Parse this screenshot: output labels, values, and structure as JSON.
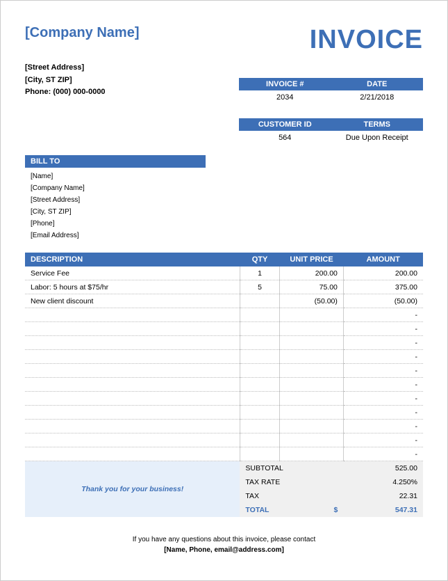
{
  "colors": {
    "primary": "#3d6fb6",
    "light_blue": "#e6effa",
    "grey_bg": "#f0f0f0",
    "dotted": "#bbbbbb",
    "border": "#cccccc"
  },
  "company": {
    "name": "[Company Name]",
    "street": "[Street Address]",
    "city": "[City, ST  ZIP]",
    "phone": "Phone: (000) 000-0000"
  },
  "title": "INVOICE",
  "meta1": {
    "h1": "INVOICE #",
    "h2": "DATE",
    "v1": "2034",
    "v2": "2/21/2018"
  },
  "meta2": {
    "h1": "CUSTOMER ID",
    "h2": "TERMS",
    "v1": "564",
    "v2": "Due Upon Receipt"
  },
  "billto": {
    "header": "BILL TO",
    "name": "[Name]",
    "company": "[Company Name]",
    "street": "[Street Address]",
    "city": "[City, ST  ZIP]",
    "phone": "[Phone]",
    "email": "[Email Address]"
  },
  "columns": {
    "desc": "DESCRIPTION",
    "qty": "QTY",
    "price": "UNIT PRICE",
    "amt": "AMOUNT"
  },
  "items": [
    {
      "desc": "Service Fee",
      "qty": "1",
      "price": "200.00",
      "amt": "200.00"
    },
    {
      "desc": "Labor: 5 hours at $75/hr",
      "qty": "5",
      "price": "75.00",
      "amt": "375.00"
    },
    {
      "desc": "New client discount",
      "qty": "",
      "price": "(50.00)",
      "amt": "(50.00)"
    },
    {
      "desc": "",
      "qty": "",
      "price": "",
      "amt": "-"
    },
    {
      "desc": "",
      "qty": "",
      "price": "",
      "amt": "-"
    },
    {
      "desc": "",
      "qty": "",
      "price": "",
      "amt": "-"
    },
    {
      "desc": "",
      "qty": "",
      "price": "",
      "amt": "-"
    },
    {
      "desc": "",
      "qty": "",
      "price": "",
      "amt": "-"
    },
    {
      "desc": "",
      "qty": "",
      "price": "",
      "amt": "-"
    },
    {
      "desc": "",
      "qty": "",
      "price": "",
      "amt": "-"
    },
    {
      "desc": "",
      "qty": "",
      "price": "",
      "amt": "-"
    },
    {
      "desc": "",
      "qty": "",
      "price": "",
      "amt": "-"
    },
    {
      "desc": "",
      "qty": "",
      "price": "",
      "amt": "-"
    },
    {
      "desc": "",
      "qty": "",
      "price": "",
      "amt": "-"
    }
  ],
  "thankyou": "Thank you for your business!",
  "totals": {
    "subtotal_label": "SUBTOTAL",
    "subtotal": "525.00",
    "taxrate_label": "TAX RATE",
    "taxrate": "4.250%",
    "tax_label": "TAX",
    "tax": "22.31",
    "total_label": "TOTAL",
    "currency": "$",
    "total": "547.31"
  },
  "footer": {
    "line1": "If you have any questions about this invoice, please contact",
    "line2": "[Name, Phone, email@address.com]"
  }
}
